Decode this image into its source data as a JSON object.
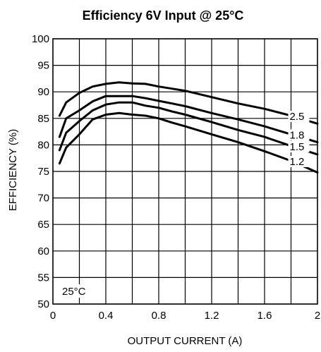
{
  "chart_data": {
    "type": "line",
    "title": "Efficiency 6V Input @ 25°C",
    "xlabel": "OUTPUT CURRENT (A)",
    "ylabel": "EFFICIENCY (%)",
    "xlim": [
      0,
      2
    ],
    "ylim": [
      50,
      100
    ],
    "x_ticks": [
      "0",
      "0.4",
      "0.8",
      "1.2",
      "1.6",
      "2"
    ],
    "y_ticks": [
      "50",
      "55",
      "60",
      "65",
      "70",
      "75",
      "80",
      "85",
      "90",
      "95",
      "100"
    ],
    "grid": "on",
    "annotation": "25°C",
    "series": [
      {
        "name": "2.5",
        "x": [
          0.05,
          0.1,
          0.2,
          0.3,
          0.4,
          0.5,
          0.6,
          0.7,
          0.8,
          0.9,
          1.0,
          1.2,
          1.4,
          1.6,
          1.8,
          2.0
        ],
        "y": [
          85.5,
          88.0,
          89.8,
          91.0,
          91.5,
          91.8,
          91.6,
          91.5,
          91.0,
          90.6,
          90.2,
          89.0,
          87.8,
          86.8,
          85.5,
          84.0
        ]
      },
      {
        "name": "1.8",
        "x": [
          0.05,
          0.1,
          0.2,
          0.3,
          0.4,
          0.5,
          0.6,
          0.7,
          0.8,
          0.9,
          1.0,
          1.2,
          1.4,
          1.6,
          1.8,
          2.0
        ],
        "y": [
          81.5,
          85.0,
          86.5,
          88.2,
          89.2,
          89.2,
          89.2,
          88.8,
          88.3,
          87.8,
          87.3,
          86.0,
          84.8,
          83.5,
          82.0,
          80.5
        ]
      },
      {
        "name": "1.5",
        "x": [
          0.05,
          0.1,
          0.2,
          0.3,
          0.4,
          0.5,
          0.6,
          0.7,
          0.8,
          0.9,
          1.0,
          1.2,
          1.4,
          1.6,
          1.8,
          2.0
        ],
        "y": [
          79.0,
          82.3,
          84.5,
          86.5,
          87.6,
          88.0,
          88.0,
          87.4,
          87.0,
          86.3,
          85.7,
          84.3,
          82.8,
          81.5,
          79.8,
          78.2
        ]
      },
      {
        "name": "1.2",
        "x": [
          0.05,
          0.1,
          0.2,
          0.3,
          0.4,
          0.5,
          0.6,
          0.7,
          0.8,
          0.9,
          1.0,
          1.2,
          1.4,
          1.6,
          1.8,
          2.0
        ],
        "y": [
          76.5,
          79.5,
          82.0,
          84.8,
          85.7,
          86.0,
          85.7,
          85.5,
          85.0,
          84.2,
          83.5,
          82.0,
          80.5,
          78.8,
          77.0,
          74.8
        ]
      }
    ]
  }
}
